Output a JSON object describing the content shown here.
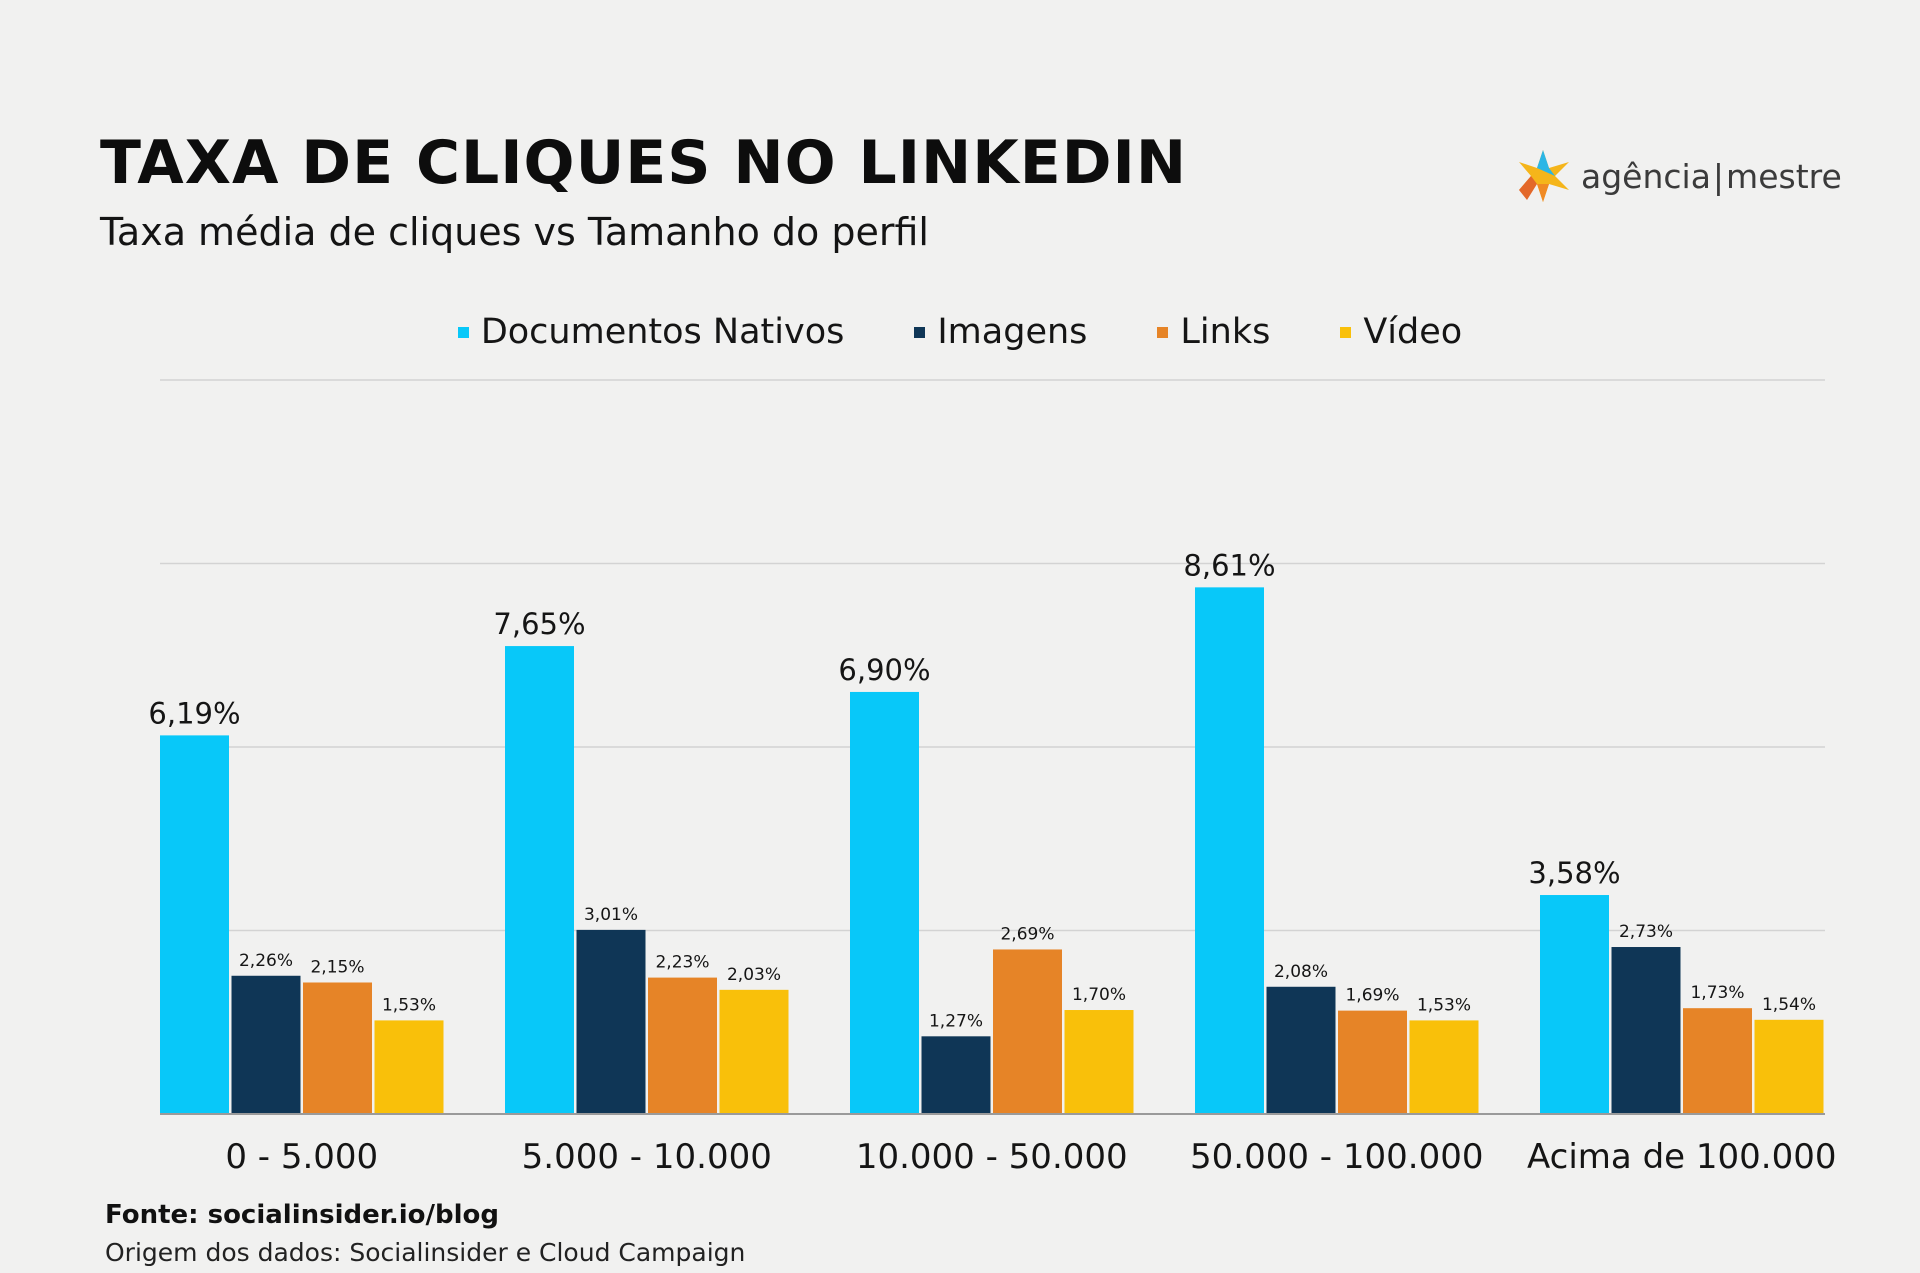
{
  "header": {
    "title": "TAXA DE CLIQUES NO LINKEDIN",
    "subtitle": "Taxa média de cliques vs Tamanho do perfil"
  },
  "logo": {
    "text_left": "agência",
    "separator": "|",
    "text_right": "mestre"
  },
  "footer": {
    "source": "Fonte: socialinsider.io/blog",
    "origin": "Origem dos dados: Socialinsider e Cloud Campaign"
  },
  "colors": {
    "documentos": "#08c8f9",
    "imagens": "#0f3656",
    "links": "#e68427",
    "video": "#f9c00a",
    "grid": "#d3d3d3",
    "axis": "#9a9a9a"
  },
  "chart_data": {
    "type": "bar",
    "title": "TAXA DE CLIQUES NO LINKEDIN",
    "subtitle": "Taxa média de cliques vs Tamanho do perfil",
    "xlabel": "",
    "ylabel": "",
    "ylim": [
      0,
      12
    ],
    "grid": true,
    "legend_position": "top-center",
    "categories": [
      "0 - 5.000",
      "5.000 - 10.000",
      "10.000 - 50.000",
      "50.000 - 100.000",
      "Acima de 100.000"
    ],
    "series": [
      {
        "name": "Documentos Nativos",
        "values": [
          6.19,
          7.65,
          6.9,
          8.61,
          3.58
        ],
        "labels": [
          "6,19%",
          "7,65%",
          "6,90%",
          "8,61%",
          "3,58%"
        ]
      },
      {
        "name": "Imagens",
        "values": [
          2.26,
          3.01,
          1.27,
          2.08,
          2.73
        ],
        "labels": [
          "2,26%",
          "3,01%",
          "1,27%",
          "2,08%",
          "2,73%"
        ]
      },
      {
        "name": "Links",
        "values": [
          2.15,
          2.23,
          2.69,
          1.69,
          1.73
        ],
        "labels": [
          "2,15%",
          "2,23%",
          "2,69%",
          "1,69%",
          "1,73%"
        ]
      },
      {
        "name": "Vídeo",
        "values": [
          1.53,
          2.03,
          1.7,
          1.53,
          1.54
        ],
        "labels": [
          "1,53%",
          "2,03%",
          "1,70%",
          "1,53%",
          "1,54%"
        ]
      }
    ]
  }
}
